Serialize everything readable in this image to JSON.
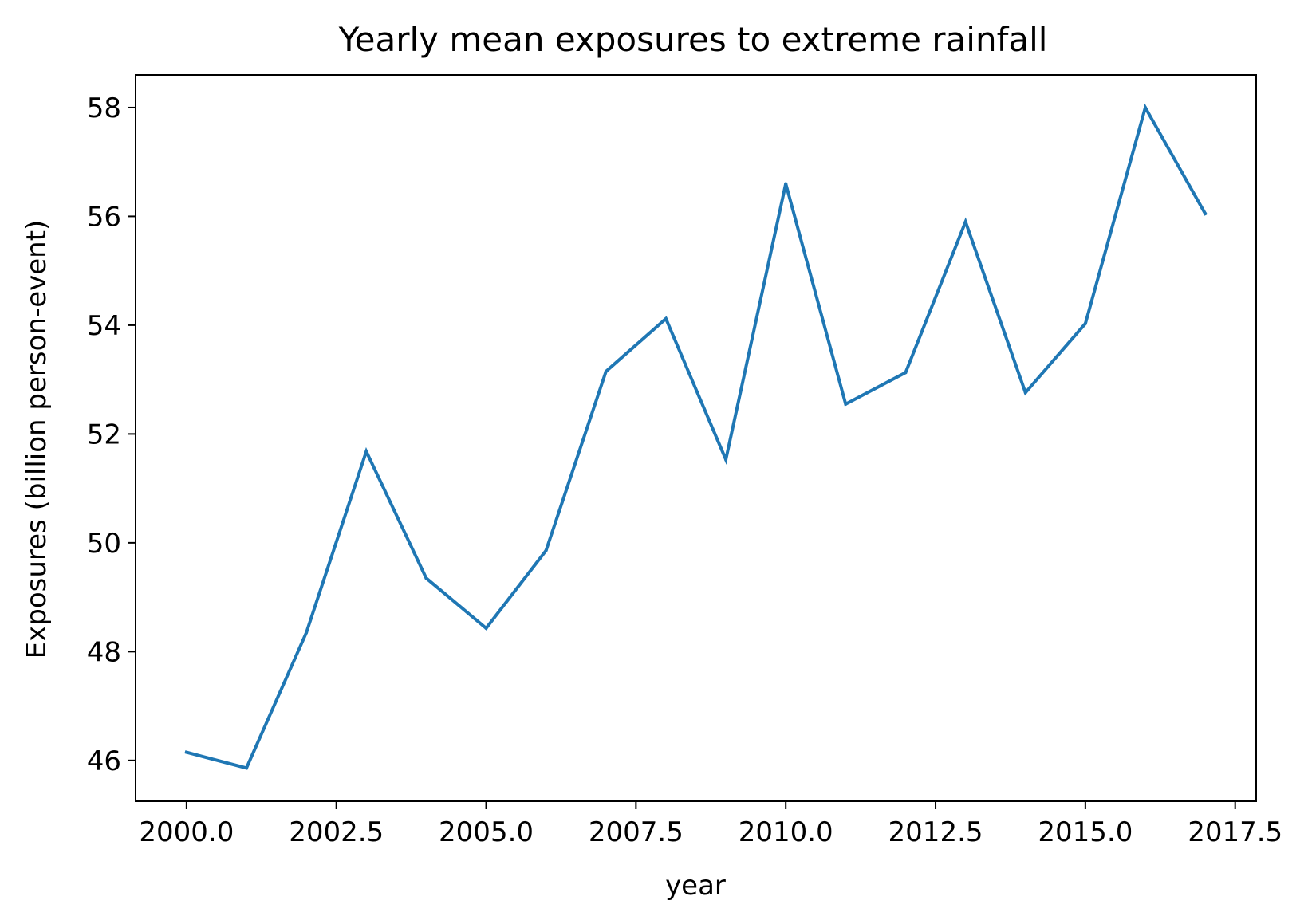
{
  "chart_data": {
    "type": "line",
    "title": "Yearly mean exposures to extreme rainfall",
    "xlabel": "year",
    "ylabel": "Exposures (billion person-event)",
    "xlim": [
      1999.15,
      2017.85
    ],
    "ylim": [
      45.25,
      58.6
    ],
    "x_ticks": [
      2000.0,
      2002.5,
      2005.0,
      2007.5,
      2010.0,
      2012.5,
      2015.0,
      2017.5
    ],
    "x_tick_labels": [
      "2000.0",
      "2002.5",
      "2005.0",
      "2007.5",
      "2010.0",
      "2012.5",
      "2015.0",
      "2017.5"
    ],
    "y_ticks": [
      46,
      48,
      50,
      52,
      54,
      56,
      58
    ],
    "y_tick_labels": [
      "46",
      "48",
      "50",
      "52",
      "54",
      "56",
      "58"
    ],
    "grid": false,
    "legend": "none",
    "series": [
      {
        "color": "#1f77b4",
        "x": [
          2000,
          2001,
          2002,
          2003,
          2004,
          2005,
          2006,
          2007,
          2008,
          2009,
          2010,
          2011,
          2012,
          2013,
          2014,
          2015,
          2016,
          2017
        ],
        "y": [
          46.15,
          45.86,
          48.35,
          51.68,
          49.35,
          48.43,
          49.86,
          53.15,
          54.12,
          51.53,
          56.6,
          52.55,
          53.13,
          55.9,
          52.76,
          54.03,
          58.0,
          56.05
        ]
      }
    ]
  }
}
